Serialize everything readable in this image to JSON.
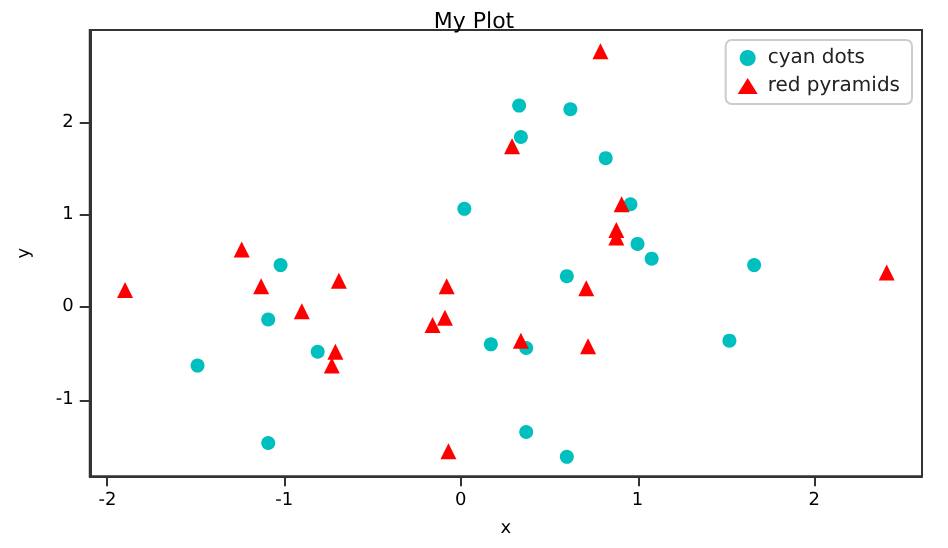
{
  "chart_data": {
    "type": "scatter",
    "title": "My Plot",
    "xlabel": "x",
    "ylabel": "y",
    "xlim": [
      -2.1,
      2.61
    ],
    "ylim": [
      -1.83,
      3.01
    ],
    "xticks": [
      -2,
      -1,
      0,
      1,
      2
    ],
    "yticks": [
      -1,
      0,
      1,
      2
    ],
    "grid": false,
    "legend": "top right",
    "series": [
      {
        "name": "cyan dots",
        "color": "#00bfbf",
        "marker": "circle",
        "x": [
          -1.49,
          -1.02,
          -1.09,
          -0.81,
          -1.09,
          0.02,
          0.33,
          0.62,
          0.34,
          0.82,
          0.96,
          1.0,
          1.08,
          0.6,
          1.66,
          0.17,
          0.37,
          1.52,
          0.37,
          0.6
        ],
        "values": [
          -0.63,
          0.46,
          -0.13,
          -0.48,
          -1.47,
          1.07,
          2.19,
          2.15,
          1.85,
          1.62,
          1.12,
          0.69,
          0.53,
          0.34,
          0.46,
          -0.4,
          -0.44,
          -0.36,
          -1.35,
          -1.62
        ]
      },
      {
        "name": "red pyramids",
        "color": "#ff0000",
        "marker": "triangle",
        "x": [
          -1.9,
          -1.24,
          -1.13,
          -0.9,
          -0.69,
          -0.71,
          -0.73,
          -0.16,
          -0.09,
          -0.08,
          -0.07,
          0.79,
          0.29,
          0.91,
          0.88,
          0.88,
          0.71,
          0.34,
          0.72,
          2.41
        ],
        "values": [
          0.19,
          0.63,
          0.23,
          -0.04,
          0.29,
          -0.48,
          -0.63,
          -0.19,
          -0.11,
          0.23,
          -1.56,
          2.78,
          1.75,
          1.12,
          0.84,
          0.76,
          0.21,
          -0.36,
          -0.42,
          0.38
        ]
      }
    ]
  }
}
